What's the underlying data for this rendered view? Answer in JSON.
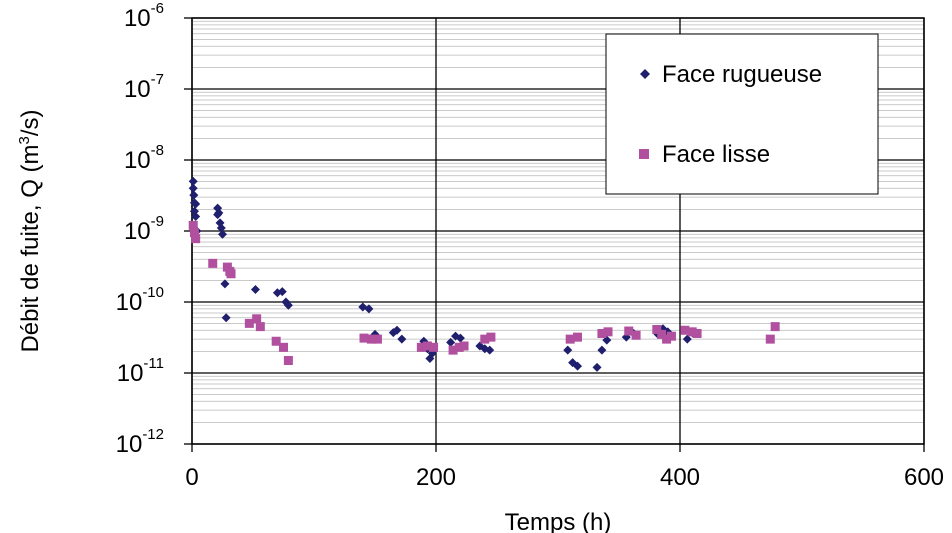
{
  "chart_data": {
    "type": "scatter",
    "title": "",
    "xlabel": "Temps (h)",
    "ylabel_parts": {
      "main": "Débit de fuite, Q (m",
      "sup": "3",
      "tail": "/s)"
    },
    "xlim": [
      0,
      600
    ],
    "ylim": [
      1e-12,
      1e-06
    ],
    "y_scale": "log",
    "x_ticks": [
      "0",
      "200",
      "400",
      "600"
    ],
    "y_ticks": [
      {
        "base": "10",
        "exp": "-6"
      },
      {
        "base": "10",
        "exp": "-7"
      },
      {
        "base": "10",
        "exp": "-8"
      },
      {
        "base": "10",
        "exp": "-9"
      },
      {
        "base": "10",
        "exp": "-10"
      },
      {
        "base": "10",
        "exp": "-11"
      },
      {
        "base": "10",
        "exp": "-12"
      }
    ],
    "grid": true,
    "legend_position": "top-right",
    "series": [
      {
        "name": "Face rugueuse",
        "marker": "diamond",
        "color": "#1f1f6e",
        "points": [
          [
            1,
            5e-09
          ],
          [
            1,
            4e-09
          ],
          [
            1.5,
            3.2e-09
          ],
          [
            2,
            2.5e-09
          ],
          [
            2,
            1.9e-09
          ],
          [
            3,
            2.4e-09
          ],
          [
            3,
            1.6e-09
          ],
          [
            4,
            1e-09
          ],
          [
            21,
            2.1e-09
          ],
          [
            21,
            1.7e-09
          ],
          [
            22,
            1.8e-09
          ],
          [
            23,
            1.3e-09
          ],
          [
            24,
            1.1e-09
          ],
          [
            25,
            9e-10
          ],
          [
            27,
            1.8e-10
          ],
          [
            28,
            6e-11
          ],
          [
            52,
            1.5e-10
          ],
          [
            70,
            1.35e-10
          ],
          [
            74,
            1.4e-10
          ],
          [
            77,
            1e-10
          ],
          [
            79,
            9e-11
          ],
          [
            140,
            8.5e-11
          ],
          [
            145,
            8e-11
          ],
          [
            150,
            3.5e-11
          ],
          [
            165,
            3.7e-11
          ],
          [
            168,
            4e-11
          ],
          [
            172,
            3e-11
          ],
          [
            190,
            2.8e-11
          ],
          [
            193,
            2.2e-11
          ],
          [
            195,
            1.6e-11
          ],
          [
            197,
            1.9e-11
          ],
          [
            212,
            2.7e-11
          ],
          [
            216,
            3.3e-11
          ],
          [
            220,
            3.1e-11
          ],
          [
            236,
            2.4e-11
          ],
          [
            240,
            2.2e-11
          ],
          [
            244,
            2.1e-11
          ],
          [
            308,
            2.1e-11
          ],
          [
            312,
            1.4e-11
          ],
          [
            316,
            1.25e-11
          ],
          [
            332,
            1.2e-11
          ],
          [
            336,
            2.1e-11
          ],
          [
            340,
            2.9e-11
          ],
          [
            356,
            3.2e-11
          ],
          [
            362,
            3.6e-11
          ],
          [
            382,
            3.5e-11
          ],
          [
            386,
            4.2e-11
          ],
          [
            390,
            3.8e-11
          ],
          [
            406,
            3e-11
          ],
          [
            410,
            3.7e-11
          ]
        ]
      },
      {
        "name": "Face lisse",
        "marker": "square",
        "color": "#b0509e",
        "points": [
          [
            1,
            1.2e-09
          ],
          [
            2,
            9.5e-10
          ],
          [
            3,
            7.8e-10
          ],
          [
            17,
            3.5e-10
          ],
          [
            29,
            3.1e-10
          ],
          [
            31,
            2.7e-10
          ],
          [
            32,
            2.5e-10
          ],
          [
            47,
            5e-11
          ],
          [
            53,
            5.8e-11
          ],
          [
            56,
            4.5e-11
          ],
          [
            69,
            2.8e-11
          ],
          [
            75,
            2.3e-11
          ],
          [
            79,
            1.5e-11
          ],
          [
            141,
            3.1e-11
          ],
          [
            147,
            3e-11
          ],
          [
            152,
            3e-11
          ],
          [
            188,
            2.3e-11
          ],
          [
            193,
            2.4e-11
          ],
          [
            198,
            2.3e-11
          ],
          [
            214,
            2.1e-11
          ],
          [
            219,
            2.3e-11
          ],
          [
            223,
            2.4e-11
          ],
          [
            240,
            3e-11
          ],
          [
            245,
            3.2e-11
          ],
          [
            310,
            3e-11
          ],
          [
            316,
            3.2e-11
          ],
          [
            336,
            3.6e-11
          ],
          [
            341,
            3.8e-11
          ],
          [
            358,
            3.9e-11
          ],
          [
            364,
            3.4e-11
          ],
          [
            381,
            4.1e-11
          ],
          [
            385,
            3.5e-11
          ],
          [
            389,
            3e-11
          ],
          [
            393,
            3.3e-11
          ],
          [
            404,
            4e-11
          ],
          [
            410,
            3.8e-11
          ],
          [
            414,
            3.6e-11
          ],
          [
            474,
            3e-11
          ],
          [
            478,
            4.5e-11
          ]
        ]
      }
    ]
  }
}
